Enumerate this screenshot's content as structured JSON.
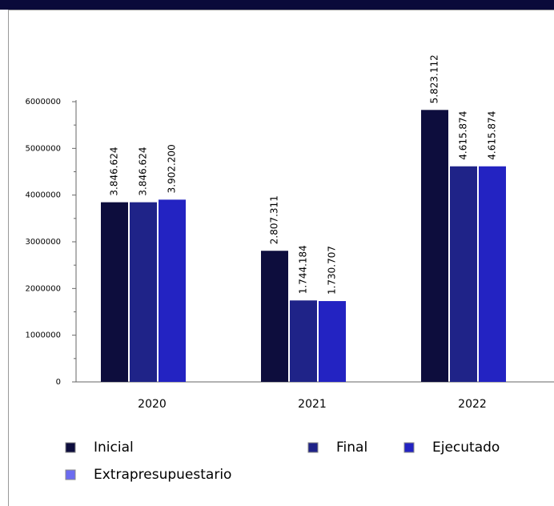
{
  "chart_data": {
    "type": "bar",
    "legend": "bottom",
    "categories": [
      "2020",
      "2021",
      "2022"
    ],
    "series": [
      {
        "name": "Inicial",
        "color": "#0d0d3d",
        "values": [
          3846624,
          2807311,
          5823112
        ],
        "value_labels": [
          "3.846.624",
          "2.807.311",
          "5.823.112"
        ]
      },
      {
        "name": "Final",
        "color": "#1f2388",
        "values": [
          3846624,
          1744184,
          4615874
        ],
        "value_labels": [
          "3.846.624",
          "1.744.184",
          "4.615.874"
        ]
      },
      {
        "name": "Ejecutado",
        "color": "#2323c2",
        "values": [
          3902200,
          1730707,
          4615874
        ],
        "value_labels": [
          "3.902.200",
          "1.730.707",
          "4.615.874"
        ]
      },
      {
        "name": "Extrapresupuestario",
        "color": "#6b6bf0",
        "values": [
          null,
          null,
          null
        ]
      }
    ],
    "ylim": [
      0,
      6000000
    ],
    "yticks": [
      0,
      1000000,
      2000000,
      3000000,
      4000000,
      5000000,
      6000000
    ]
  }
}
